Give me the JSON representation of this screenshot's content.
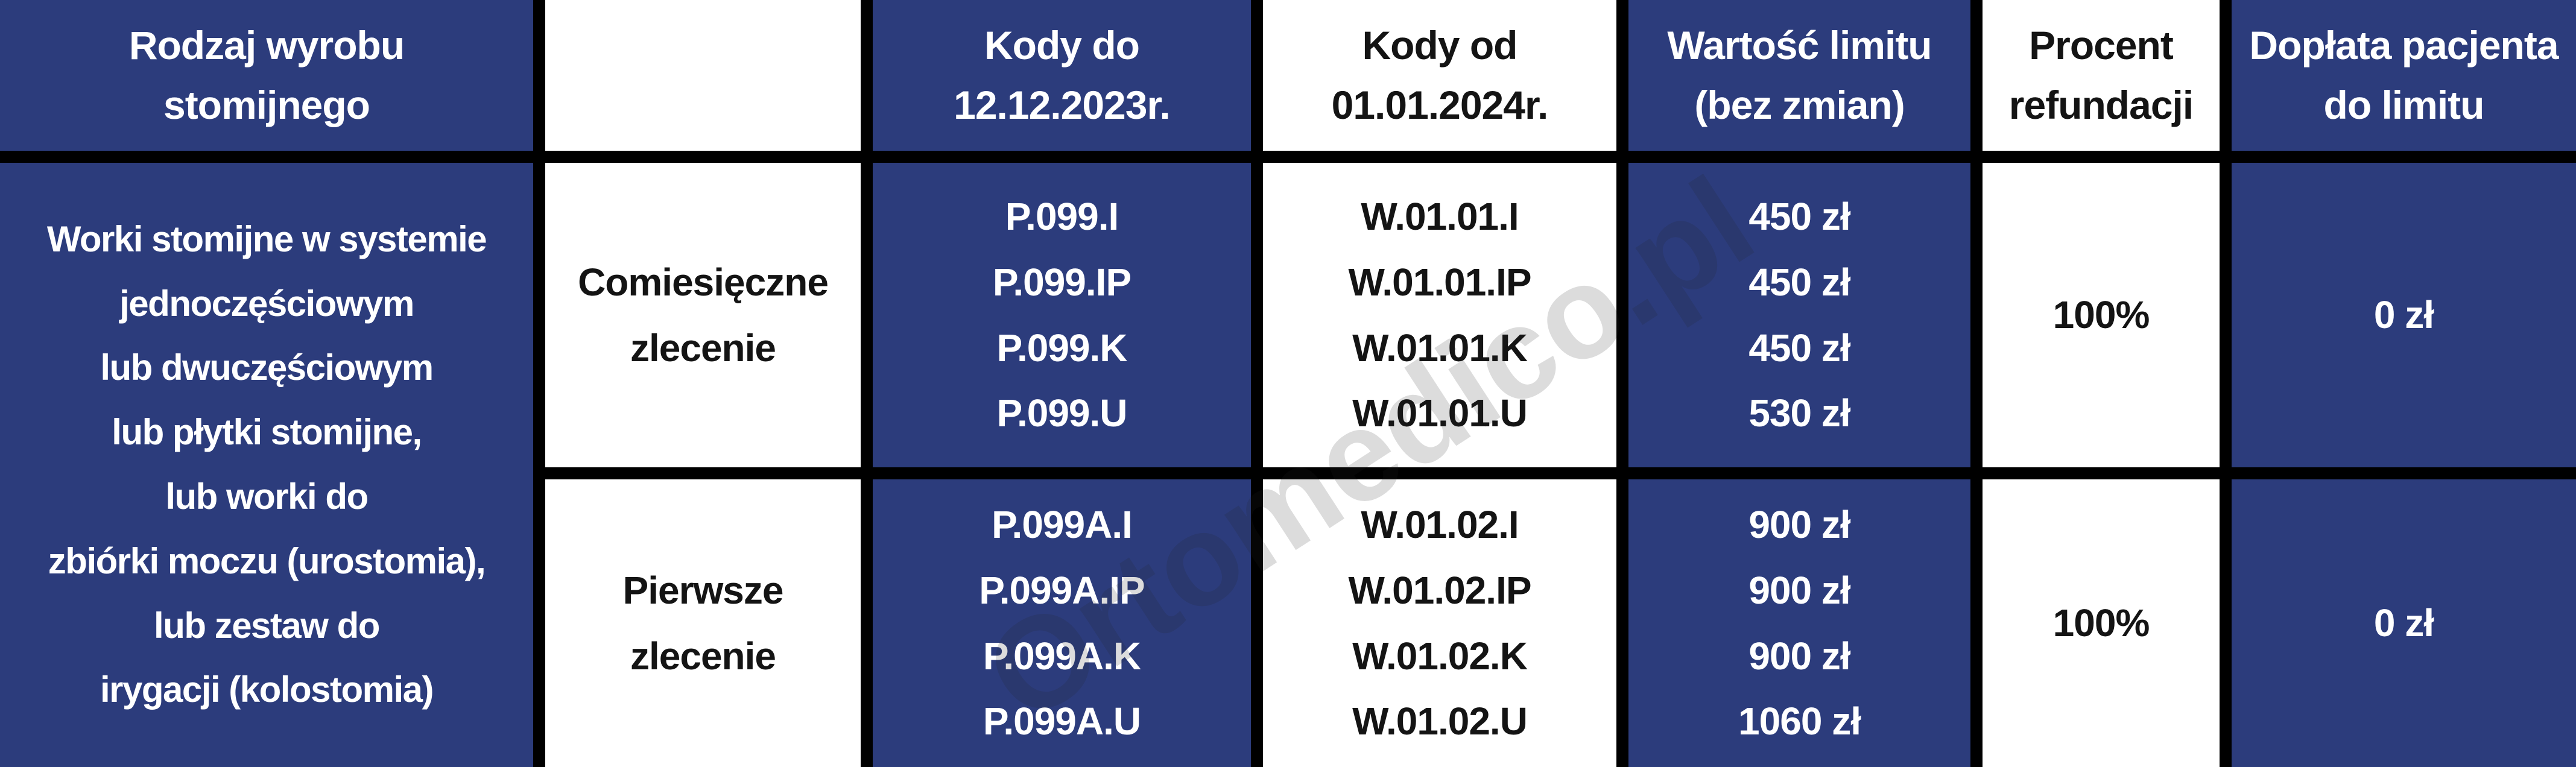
{
  "colors": {
    "cell_blue": "#2c3c7c",
    "grid_black": "#000000",
    "text_on_blue": "#ffffff",
    "text_on_white": "#141414",
    "watermark_gray": "rgba(40,40,40,0.16)"
  },
  "watermark": {
    "text": "Ortomedico.pl"
  },
  "table": {
    "header": {
      "product_type": "Rodzaj wyrobu\nstomijnego",
      "order_type": "",
      "codes_old": "Kody do\n12.12.2023r.",
      "codes_new": "Kody od\n01.01.2024r.",
      "limit_value": "Wartość limitu\n(bez zmian)",
      "refund_percent": "Procent\nrefundacji",
      "patient_copay": "Dopłata pacjenta\ndo limitu"
    },
    "product_type": "Worki stomijne w systemie\njednoczęściowym\nlub dwuczęściowym\nlub płytki stomijne,\nlub worki do\nzbiórki moczu (urostomia),\nlub zestaw do\nirygacji (kolostomia)",
    "rows": [
      {
        "order_type": "Comiesięczne\nzlecenie",
        "codes_old": "P.099.I\nP.099.IP\nP.099.K\nP.099.U",
        "codes_new": "W.01.01.I\nW.01.01.IP\nW.01.01.K\nW.01.01.U",
        "limit_value": "450 zł\n450 zł\n450 zł\n530 zł",
        "refund_percent": "100%",
        "patient_copay": "0 zł"
      },
      {
        "order_type": "Pierwsze\nzlecenie",
        "codes_old": "P.099A.I\nP.099A.IP\nP.099A.K\nP.099A.U",
        "codes_new": "W.01.02.I\nW.01.02.IP\nW.01.02.K\nW.01.02.U",
        "limit_value": "900 zł\n900 zł\n900 zł\n1060 zł",
        "refund_percent": "100%",
        "patient_copay": "0 zł"
      }
    ]
  }
}
